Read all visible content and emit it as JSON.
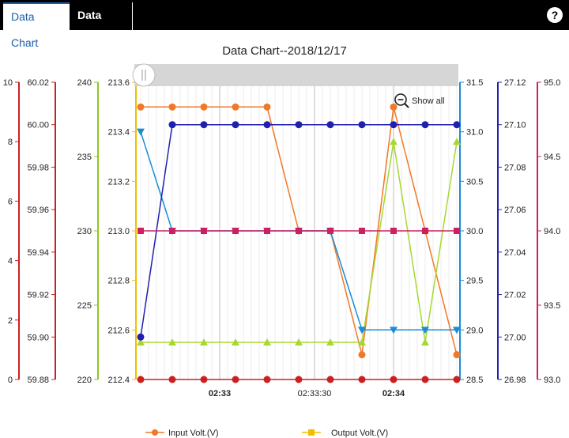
{
  "tabs": [
    {
      "label": "Data Chart",
      "active": true
    },
    {
      "label": "Data Log",
      "active": false
    }
  ],
  "help_label": "?",
  "show_all_label": "Show all",
  "chart_data": {
    "type": "line",
    "title": "Data Chart--2018/12/17",
    "x": [
      0,
      1,
      2,
      3,
      4,
      5,
      6,
      7,
      8,
      9,
      10
    ],
    "x_ticks": [
      {
        "pos": 2.5,
        "label": "02:33",
        "bold": true
      },
      {
        "pos": 5.5,
        "label": "02:33:30",
        "bold": false
      },
      {
        "pos": 8,
        "label": "02:34",
        "bold": true
      }
    ],
    "axes": [
      {
        "id": "ax0",
        "side": "left",
        "color": "#cc2020",
        "min": 0,
        "max": 10,
        "ticks": [
          0,
          2,
          4,
          6,
          8,
          10
        ],
        "decimals": 0
      },
      {
        "id": "ax1",
        "side": "left",
        "color": "#cc2020",
        "min": 59.88,
        "max": 60.02,
        "ticks": [
          59.88,
          59.9,
          59.92,
          59.94,
          59.96,
          59.98,
          60.0,
          60.02
        ],
        "decimals": 2
      },
      {
        "id": "ax2",
        "side": "left",
        "color": "#8bc820",
        "min": 220,
        "max": 240,
        "ticks": [
          220,
          225,
          230,
          235,
          240
        ],
        "decimals": 0
      },
      {
        "id": "ax3",
        "side": "left",
        "color": "#f0c000",
        "min": 212.4,
        "max": 213.6,
        "ticks": [
          212.4,
          212.6,
          212.8,
          213.0,
          213.2,
          213.4,
          213.6
        ],
        "decimals": 1
      },
      {
        "id": "ax4",
        "side": "right",
        "color": "#1a8cd8",
        "min": 28.5,
        "max": 31.5,
        "ticks": [
          28.5,
          29.0,
          29.5,
          30.0,
          30.5,
          31.0,
          31.5
        ],
        "decimals": 1
      },
      {
        "id": "ax5",
        "side": "right",
        "color": "#2020b0",
        "min": 26.98,
        "max": 27.12,
        "ticks": [
          26.98,
          27.0,
          27.02,
          27.04,
          27.06,
          27.08,
          27.1,
          27.12
        ],
        "decimals": 2
      },
      {
        "id": "ax6",
        "side": "right",
        "color": "#cc2060",
        "min": 93.0,
        "max": 95.0,
        "ticks": [
          93.0,
          93.5,
          94.0,
          94.5,
          95.0
        ],
        "decimals": 1
      }
    ],
    "series": [
      {
        "name": "Input Volt.(V)",
        "axis": "ax3",
        "color": "#f07828",
        "marker": "circle",
        "values": [
          213.5,
          213.5,
          213.5,
          213.5,
          213.5,
          213.0,
          213.0,
          212.5,
          213.5,
          213.0,
          212.5
        ]
      },
      {
        "name": "Output Volt.(V)",
        "axis": "ax2",
        "color": "#a8d830",
        "marker": "triangle-up",
        "values": [
          222.5,
          222.5,
          222.5,
          222.5,
          222.5,
          222.5,
          222.5,
          222.5,
          236,
          222.5,
          236
        ]
      },
      {
        "axis": "ax4",
        "color": "#1a8cd8",
        "marker": "triangle-down",
        "values": [
          31.0,
          30.0,
          30.0,
          30.0,
          30.0,
          30.0,
          30.0,
          29.0,
          29.0,
          29.0,
          29.0
        ]
      },
      {
        "axis": "ax5",
        "color": "#2020b0",
        "marker": "circle",
        "values": [
          27.0,
          27.1,
          27.1,
          27.1,
          27.1,
          27.1,
          27.1,
          27.1,
          27.1,
          27.1,
          27.1
        ]
      },
      {
        "axis": "ax6",
        "color": "#cc2060",
        "marker": "square",
        "values": [
          94.0,
          94.0,
          94.0,
          94.0,
          94.0,
          94.0,
          94.0,
          94.0,
          94.0,
          94.0,
          94.0
        ]
      },
      {
        "axis": "ax0",
        "color": "#cc2020",
        "marker": "circle",
        "values": [
          0,
          0,
          0,
          0,
          0,
          0,
          0,
          0,
          0,
          0,
          0
        ]
      }
    ],
    "legend_placement": "bottom",
    "grid": true
  }
}
